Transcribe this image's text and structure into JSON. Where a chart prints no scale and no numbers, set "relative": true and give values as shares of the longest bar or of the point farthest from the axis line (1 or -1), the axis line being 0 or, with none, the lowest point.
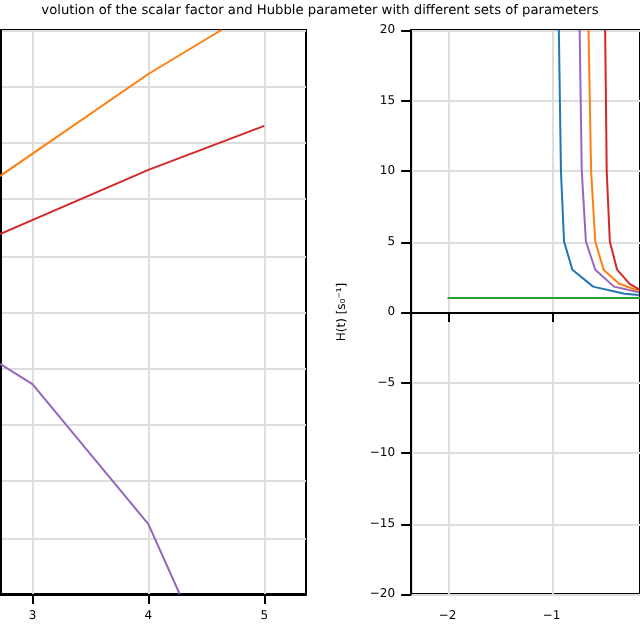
{
  "chart_data": [
    {
      "type": "line",
      "title": "volution of the scalar factor and Hubble parameter with different sets of parameters",
      "relative": true,
      "xlim": [
        2.72,
        5.36
      ],
      "xticks": [
        3,
        4,
        5
      ],
      "grid": true,
      "series": [
        {
          "color": "#ff7f0e",
          "x": [
            2.72,
            4,
            4.63
          ],
          "values": [
            0.741,
            0.922,
            1
          ]
        },
        {
          "color": "#d62728",
          "x": [
            2.72,
            4,
            5
          ],
          "values": [
            0.638,
            0.752,
            0.83
          ]
        },
        {
          "color": "#9467bd",
          "x": [
            2.72,
            3,
            3.5,
            4,
            4.27
          ],
          "values": [
            0.408,
            0.372,
            0.248,
            0.124,
            0
          ]
        }
      ]
    },
    {
      "type": "line",
      "ylabel": "H(t) [s₀⁻¹]",
      "xlim": [
        -2.35,
        -0.15
      ],
      "xticks": [
        {
          "value": -2,
          "label": "−2"
        },
        {
          "value": -1,
          "label": "−1"
        }
      ],
      "ylim": [
        -20,
        20
      ],
      "yticks": [
        {
          "value": -20,
          "label": "−20"
        },
        {
          "value": -15,
          "label": "−15"
        },
        {
          "value": -10,
          "label": "−10"
        },
        {
          "value": -5,
          "label": "−5"
        },
        0,
        5,
        10,
        15,
        20
      ],
      "grid": true,
      "series": [
        {
          "color": "#2ca02c",
          "x": [
            -2,
            -0.15
          ],
          "values": [
            1,
            1
          ]
        },
        {
          "color": "#1f77b4",
          "x": [
            -0.93,
            -0.91,
            -0.88,
            -0.8,
            -0.6,
            -0.3,
            -0.16
          ],
          "values": [
            20,
            10,
            5,
            3,
            1.8,
            1.3,
            1.2
          ]
        },
        {
          "color": "#9467bd",
          "x": [
            -0.73,
            -0.71,
            -0.67,
            -0.58,
            -0.4,
            -0.16
          ],
          "values": [
            20,
            10,
            5,
            3,
            1.8,
            1.4
          ]
        },
        {
          "color": "#ff7f0e",
          "x": [
            -0.645,
            -0.62,
            -0.58,
            -0.5,
            -0.35,
            -0.16
          ],
          "values": [
            20,
            10,
            5,
            3,
            2,
            1.5
          ]
        },
        {
          "color": "#d62728",
          "x": [
            -0.485,
            -0.47,
            -0.44,
            -0.37,
            -0.25,
            -0.16
          ],
          "values": [
            20,
            10,
            5,
            3,
            2,
            1.6
          ]
        }
      ]
    }
  ]
}
